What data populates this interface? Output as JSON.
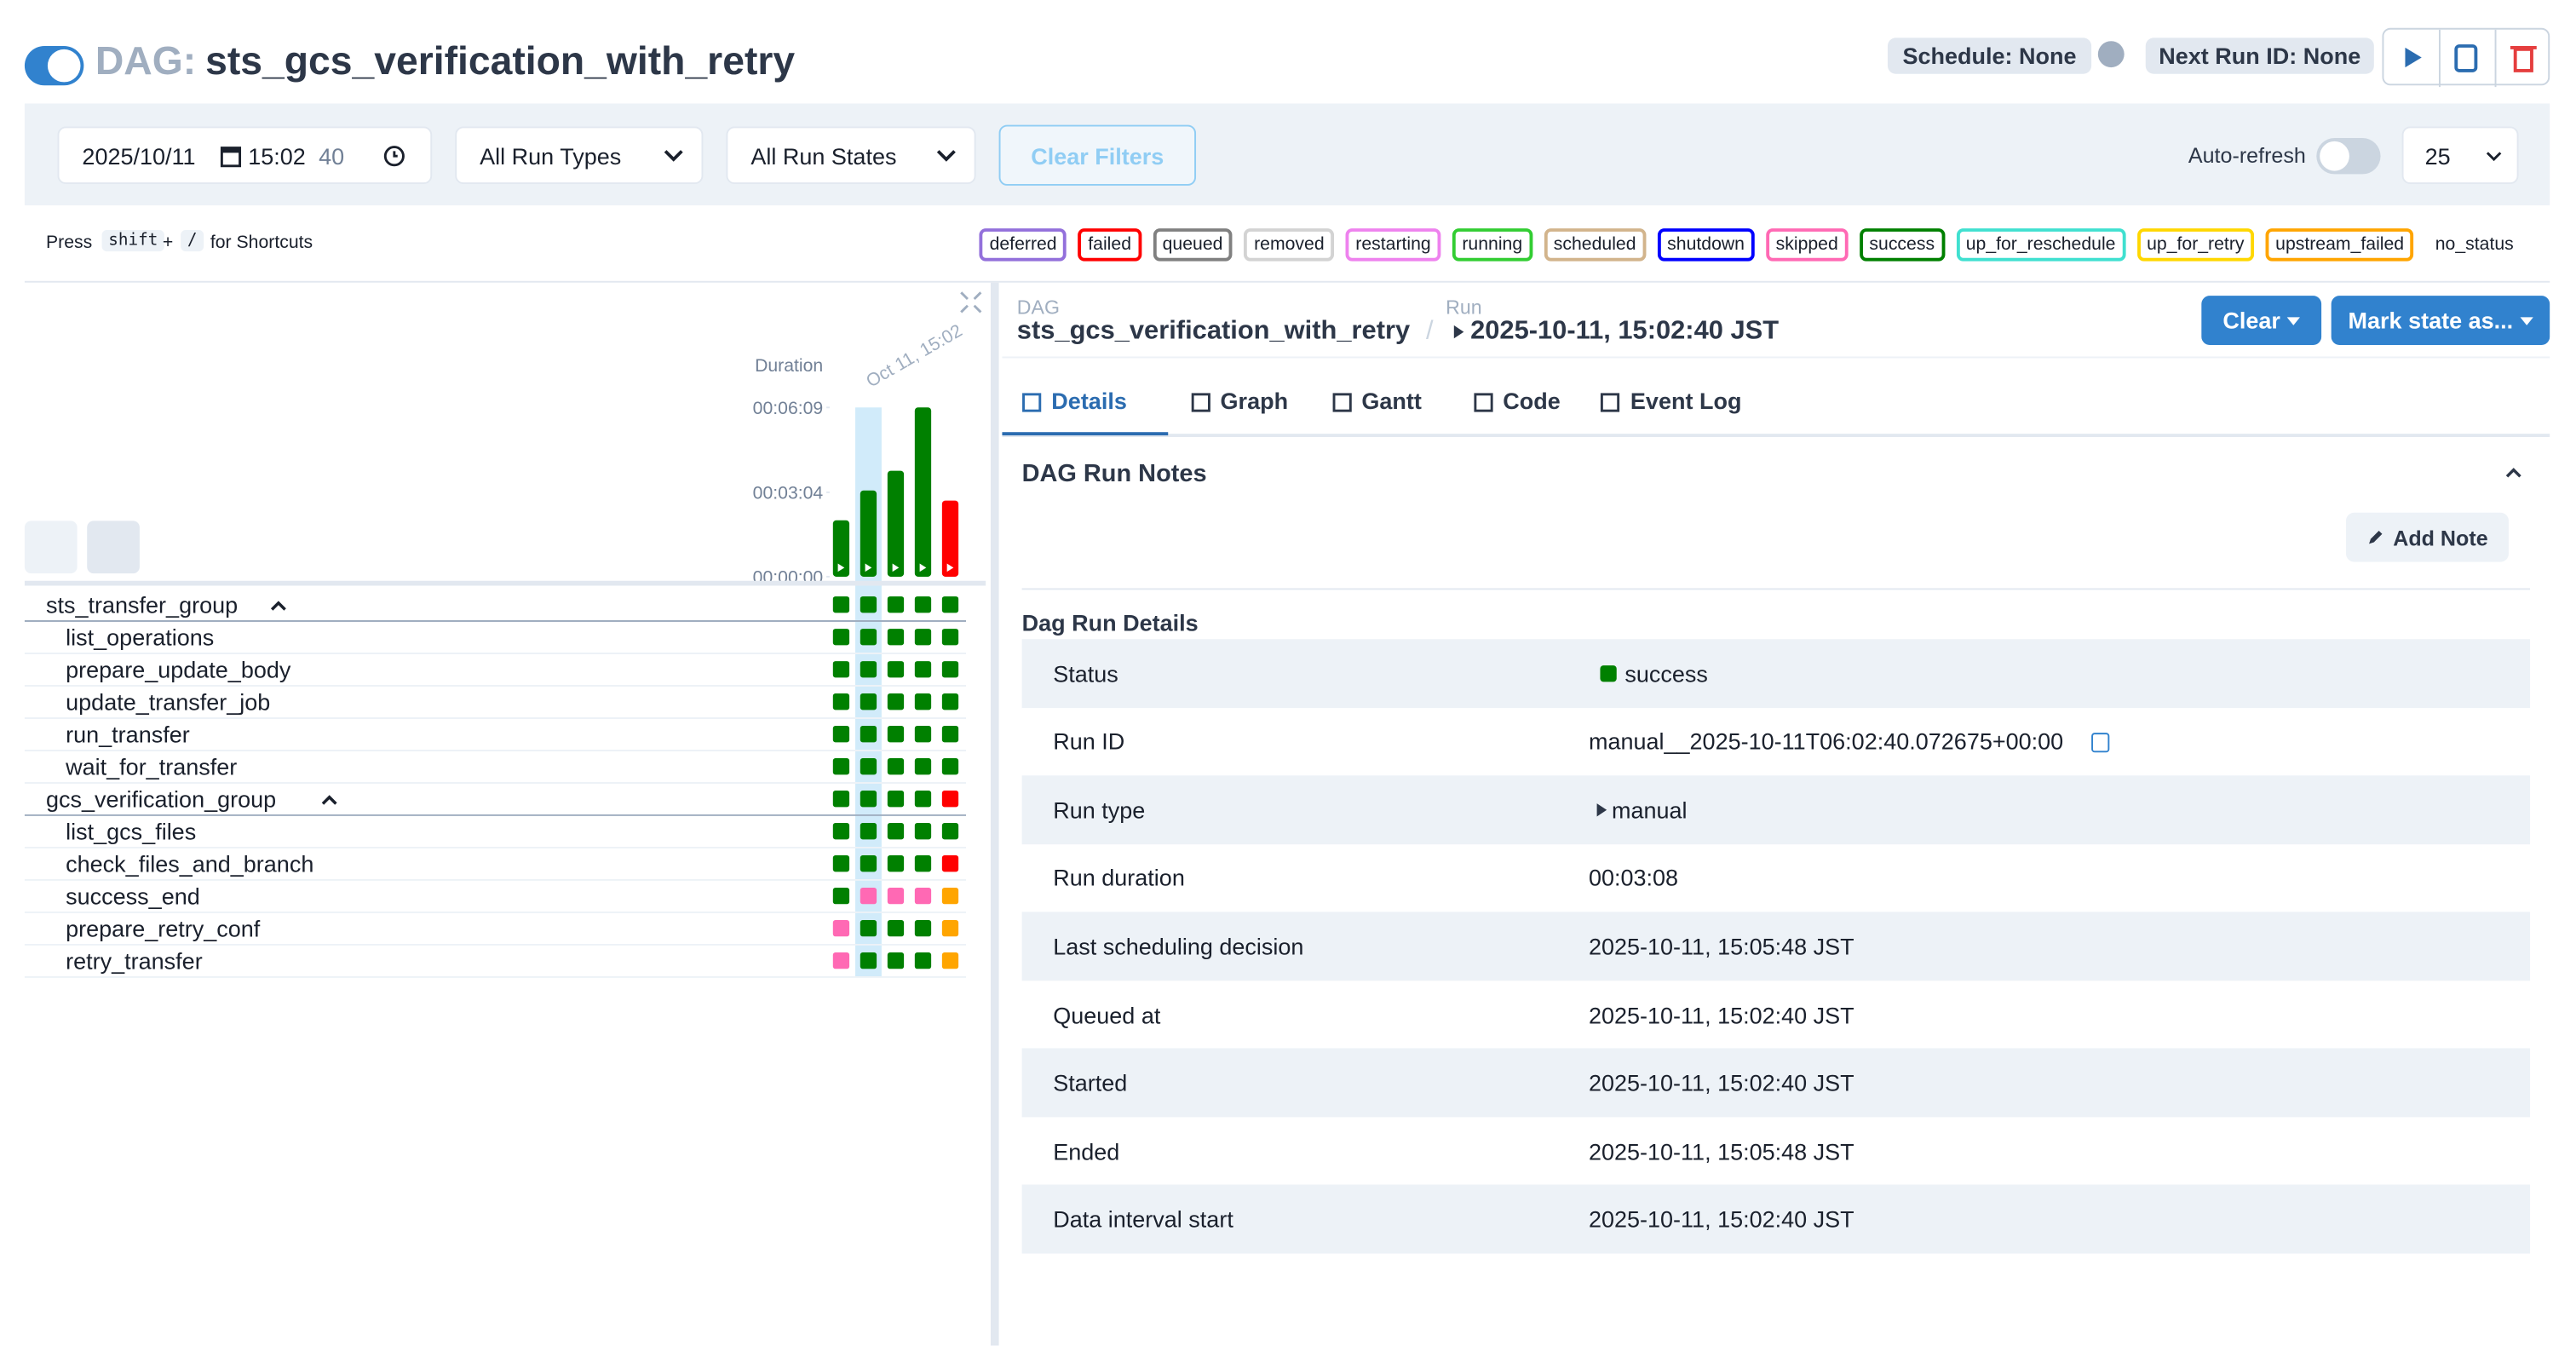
{
  "header": {
    "dag_prefix": "DAG:",
    "dag_id": "sts_gcs_verification_with_retry",
    "schedule": "Schedule: None",
    "next_run": "Next Run ID: None"
  },
  "filters": {
    "date": "2025/10/11",
    "time": "15:02",
    "seconds": "40",
    "run_types": "All Run Types",
    "run_states": "All Run States",
    "clear": "Clear Filters",
    "auto_refresh": "Auto-refresh",
    "page_size": "25"
  },
  "shortcuts": {
    "press": "Press",
    "key1": "shift",
    "plus": "+",
    "key2": "/",
    "suffix": "for Shortcuts"
  },
  "states": [
    {
      "name": "deferred",
      "color": "#9370db"
    },
    {
      "name": "failed",
      "color": "#ff0000"
    },
    {
      "name": "queued",
      "color": "#808080"
    },
    {
      "name": "removed",
      "color": "#d3d3d3"
    },
    {
      "name": "restarting",
      "color": "#ee82ee"
    },
    {
      "name": "running",
      "color": "#32cd32"
    },
    {
      "name": "scheduled",
      "color": "#d2b48c"
    },
    {
      "name": "shutdown",
      "color": "#0000ff"
    },
    {
      "name": "skipped",
      "color": "#ff69b4"
    },
    {
      "name": "success",
      "color": "#008000"
    },
    {
      "name": "up_for_reschedule",
      "color": "#40e0d0"
    },
    {
      "name": "up_for_retry",
      "color": "#ffd700"
    },
    {
      "name": "upstream_failed",
      "color": "#ffa500"
    },
    {
      "name": "no_status"
    }
  ],
  "grid": {
    "duration_label": "Duration",
    "run_label": "Oct 11, 15:02",
    "ylim": [
      0,
      369
    ],
    "yticks": [
      {
        "value": 0,
        "label": "00:00:00"
      },
      {
        "value": 184,
        "label": "00:03:04"
      },
      {
        "value": 369,
        "label": "00:06:09"
      }
    ],
    "runs": [
      {
        "duration": 123,
        "state": "success"
      },
      {
        "duration": 188,
        "state": "success"
      },
      {
        "duration": 231,
        "state": "success"
      },
      {
        "duration": 369,
        "state": "success"
      },
      {
        "duration": 166,
        "state": "failed"
      }
    ],
    "selected_run": 1,
    "tasks": [
      {
        "name": "sts_transfer_group",
        "group": true,
        "states": [
          "success",
          "success",
          "success",
          "success",
          "success"
        ]
      },
      {
        "name": "list_operations",
        "states": [
          "success",
          "success",
          "success",
          "success",
          "success"
        ]
      },
      {
        "name": "prepare_update_body",
        "states": [
          "success",
          "success",
          "success",
          "success",
          "success"
        ]
      },
      {
        "name": "update_transfer_job",
        "states": [
          "success",
          "success",
          "success",
          "success",
          "success"
        ]
      },
      {
        "name": "run_transfer",
        "states": [
          "success",
          "success",
          "success",
          "success",
          "success"
        ]
      },
      {
        "name": "wait_for_transfer",
        "states": [
          "success",
          "success",
          "success",
          "success",
          "success"
        ]
      },
      {
        "name": "gcs_verification_group",
        "group": true,
        "states": [
          "success",
          "success",
          "success",
          "success",
          "failed"
        ]
      },
      {
        "name": "list_gcs_files",
        "states": [
          "success",
          "success",
          "success",
          "success",
          "success"
        ]
      },
      {
        "name": "check_files_and_branch",
        "states": [
          "success",
          "success",
          "success",
          "success",
          "failed"
        ]
      },
      {
        "name": "success_end",
        "states": [
          "success",
          "skipped",
          "skipped",
          "skipped",
          "upstream_failed"
        ]
      },
      {
        "name": "prepare_retry_conf",
        "states": [
          "skipped",
          "success",
          "success",
          "success",
          "upstream_failed"
        ]
      },
      {
        "name": "retry_transfer",
        "states": [
          "skipped",
          "success",
          "success",
          "success",
          "upstream_failed"
        ]
      }
    ]
  },
  "breadcrumb": {
    "dag_label": "DAG",
    "dag_id": "sts_gcs_verification_with_retry",
    "run_label": "Run",
    "run": "2025-10-11, 15:02:40 JST"
  },
  "actions": {
    "clear": "Clear",
    "mark": "Mark state as..."
  },
  "tabs": [
    "Details",
    "Graph",
    "Gantt",
    "Code",
    "Event Log"
  ],
  "active_tab": 0,
  "notes": {
    "title": "DAG Run Notes",
    "add": "Add Note"
  },
  "details": {
    "title": "Dag Run Details",
    "rows": [
      [
        "Status",
        "success"
      ],
      [
        "Run ID",
        "manual__2025-10-11T06:02:40.072675+00:00"
      ],
      [
        "Run type",
        "manual"
      ],
      [
        "Run duration",
        "00:03:08"
      ],
      [
        "Last scheduling decision",
        "2025-10-11, 15:05:48 JST"
      ],
      [
        "Queued at",
        "2025-10-11, 15:02:40 JST"
      ],
      [
        "Started",
        "2025-10-11, 15:02:40 JST"
      ],
      [
        "Ended",
        "2025-10-11, 15:05:48 JST"
      ],
      [
        "Data interval start",
        "2025-10-11, 15:02:40 JST"
      ]
    ]
  }
}
